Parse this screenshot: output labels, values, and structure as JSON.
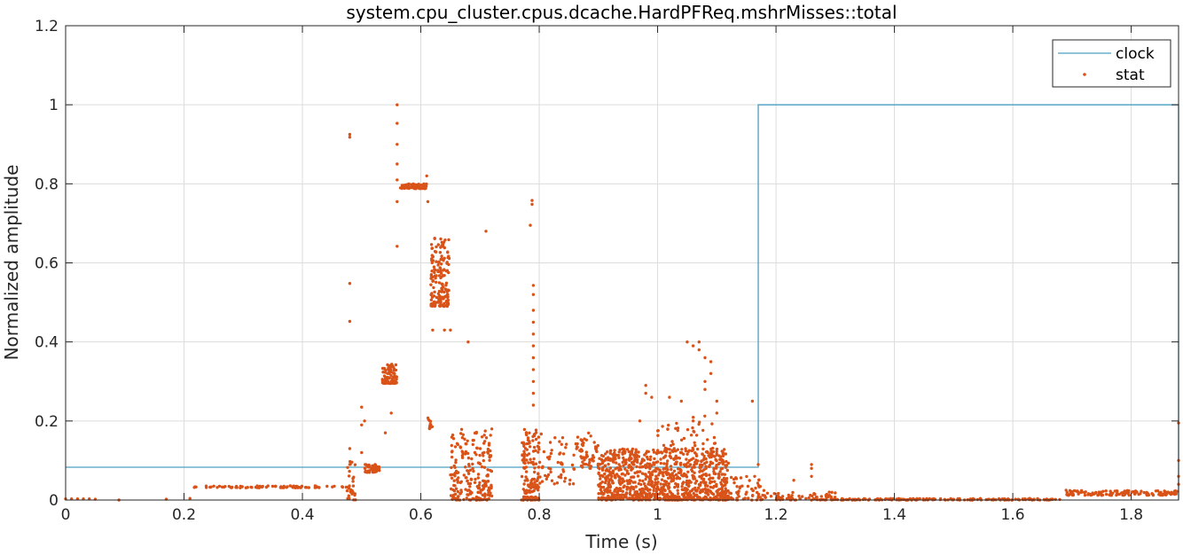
{
  "chart_data": {
    "type": "scatter",
    "title": "system.cpu_cluster.cpus.dcache.HardPFReq.mshrMisses::total",
    "xlabel": "Time (s)",
    "ylabel": "Normalized amplitude",
    "xlim": [
      0,
      1.88
    ],
    "ylim": [
      0,
      1.2
    ],
    "xticks": [
      0,
      0.2,
      0.4,
      0.6,
      0.8,
      1,
      1.2,
      1.4,
      1.6,
      1.8
    ],
    "xtick_labels": [
      "0",
      "0.2",
      "0.4",
      "0.6",
      "0.8",
      "1",
      "1.2",
      "1.4",
      "1.6",
      "1.8"
    ],
    "yticks": [
      0,
      0.2,
      0.4,
      0.6,
      0.8,
      1,
      1.2
    ],
    "ytick_labels": [
      "0",
      "0.2",
      "0.4",
      "0.6",
      "0.8",
      "1",
      "1.2"
    ],
    "grid": true,
    "legend_position": "top-right",
    "series": [
      {
        "name": "clock",
        "kind": "step-line",
        "color": "#4a9fc0",
        "x": [
          0,
          1.17,
          1.17,
          1.88,
          1.88
        ],
        "y": [
          0.083,
          0.083,
          1.0,
          1.0,
          0
        ]
      },
      {
        "name": "stat",
        "kind": "scatter",
        "color": "#d95319",
        "points": [
          [
            0.0,
            0.003
          ],
          [
            0.01,
            0.003
          ],
          [
            0.02,
            0.003
          ],
          [
            0.03,
            0.003
          ],
          [
            0.04,
            0.003
          ],
          [
            0.05,
            0.002
          ],
          [
            0.09,
            0.0
          ],
          [
            0.17,
            0.002
          ],
          [
            0.21,
            0.004
          ],
          [
            0.48,
            0.925
          ],
          [
            0.48,
            0.918
          ],
          [
            0.48,
            0.548
          ],
          [
            0.48,
            0.452
          ],
          [
            0.48,
            0.13
          ],
          [
            0.48,
            0.09
          ],
          [
            0.5,
            0.235
          ],
          [
            0.5,
            0.19
          ],
          [
            0.5,
            0.12
          ],
          [
            0.505,
            0.2
          ],
          [
            0.54,
            0.17
          ],
          [
            0.55,
            0.22
          ],
          [
            0.56,
            1.0
          ],
          [
            0.56,
            0.953
          ],
          [
            0.56,
            0.9
          ],
          [
            0.56,
            0.85
          ],
          [
            0.56,
            0.81
          ],
          [
            0.56,
            0.755
          ],
          [
            0.56,
            0.642
          ],
          [
            0.61,
            0.82
          ],
          [
            0.612,
            0.755
          ],
          [
            0.615,
            0.2
          ],
          [
            0.62,
            0.43
          ],
          [
            0.64,
            0.43
          ],
          [
            0.65,
            0.43
          ],
          [
            0.68,
            0.4
          ],
          [
            0.71,
            0.68
          ],
          [
            0.72,
            0.18
          ],
          [
            0.788,
            0.758
          ],
          [
            0.788,
            0.748
          ],
          [
            0.785,
            0.695
          ],
          [
            0.79,
            0.543
          ],
          [
            0.79,
            0.52
          ],
          [
            0.79,
            0.48
          ],
          [
            0.79,
            0.45
          ],
          [
            0.79,
            0.42
          ],
          [
            0.79,
            0.39
          ],
          [
            0.79,
            0.36
          ],
          [
            0.79,
            0.33
          ],
          [
            0.79,
            0.3
          ],
          [
            0.79,
            0.27
          ],
          [
            0.79,
            0.24
          ],
          [
            0.98,
            0.29
          ],
          [
            0.98,
            0.27
          ],
          [
            0.97,
            0.2
          ],
          [
            0.99,
            0.26
          ],
          [
            1.02,
            0.26
          ],
          [
            1.04,
            0.25
          ],
          [
            1.06,
            0.2
          ],
          [
            1.05,
            0.4
          ],
          [
            1.06,
            0.39
          ],
          [
            1.07,
            0.4
          ],
          [
            1.07,
            0.38
          ],
          [
            1.08,
            0.36
          ],
          [
            1.09,
            0.35
          ],
          [
            1.09,
            0.32
          ],
          [
            1.08,
            0.3
          ],
          [
            1.08,
            0.28
          ],
          [
            1.1,
            0.25
          ],
          [
            1.1,
            0.22
          ],
          [
            1.16,
            0.25
          ],
          [
            1.17,
            0.09
          ],
          [
            1.23,
            0.05
          ],
          [
            1.26,
            0.09
          ],
          [
            1.26,
            0.08
          ],
          [
            1.26,
            0.06
          ],
          [
            1.29,
            0.02
          ],
          [
            1.69,
            0.025
          ],
          [
            1.7,
            0.02
          ],
          [
            1.88,
            0.195
          ],
          [
            1.88,
            0.1
          ],
          [
            1.88,
            0.06
          ],
          [
            1.88,
            0.04
          ]
        ],
        "clusters": [
          {
            "x": [
              0.215,
              0.475
            ],
            "y": [
              0.031,
              0.036
            ],
            "n": 80
          },
          {
            "x": [
              0.475,
              0.49
            ],
            "y": [
              0.0,
              0.1
            ],
            "n": 30
          },
          {
            "x": [
              0.505,
              0.53
            ],
            "y": [
              0.07,
              0.09
            ],
            "n": 60
          },
          {
            "x": [
              0.535,
              0.56
            ],
            "y": [
              0.295,
              0.345
            ],
            "n": 80
          },
          {
            "x": [
              0.565,
              0.61
            ],
            "y": [
              0.788,
              0.8
            ],
            "n": 80
          },
          {
            "x": [
              0.617,
              0.648
            ],
            "y": [
              0.49,
              0.67
            ],
            "n": 160
          },
          {
            "x": [
              0.61,
              0.62
            ],
            "y": [
              0.18,
              0.21
            ],
            "n": 10
          },
          {
            "x": [
              0.65,
              0.72
            ],
            "y": [
              0.0,
              0.18
            ],
            "n": 220
          },
          {
            "x": [
              0.77,
              0.8
            ],
            "y": [
              0.0,
              0.18
            ],
            "n": 150
          },
          {
            "x": [
              0.8,
              0.87
            ],
            "y": [
              0.04,
              0.17
            ],
            "n": 60
          },
          {
            "x": [
              0.87,
              0.9
            ],
            "y": [
              0.08,
              0.17
            ],
            "n": 50
          },
          {
            "x": [
              0.9,
              1.12
            ],
            "y": [
              0.0,
              0.13
            ],
            "n": 1000
          },
          {
            "x": [
              1.0,
              1.1
            ],
            "y": [
              0.13,
              0.22
            ],
            "n": 40
          },
          {
            "x": [
              1.12,
              1.18
            ],
            "y": [
              0.0,
              0.06
            ],
            "n": 60
          },
          {
            "x": [
              1.18,
              1.3
            ],
            "y": [
              0.0,
              0.02
            ],
            "n": 70
          },
          {
            "x": [
              1.3,
              1.68
            ],
            "y": [
              0.0,
              0.004
            ],
            "n": 170
          },
          {
            "x": [
              1.69,
              1.88
            ],
            "y": [
              0.012,
              0.024
            ],
            "n": 140
          }
        ]
      }
    ]
  }
}
